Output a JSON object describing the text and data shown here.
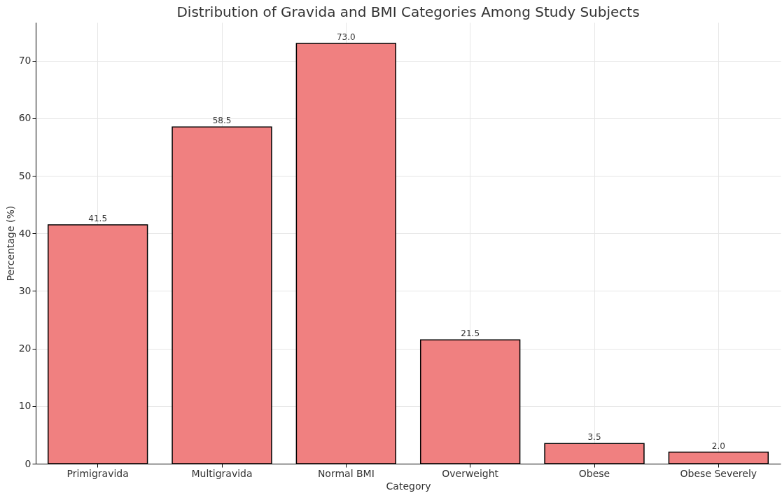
{
  "chart_data": {
    "type": "bar",
    "title": "Distribution of Gravida and BMI Categories Among Study Subjects",
    "xlabel": "Category",
    "ylabel": "Percentage (%)",
    "categories": [
      "Primigravida",
      "Multigravida",
      "Normal BMI",
      "Overweight",
      "Obese",
      "Obese Severely"
    ],
    "values": [
      41.5,
      58.5,
      73.0,
      21.5,
      3.5,
      2.0
    ],
    "value_labels": [
      "41.5",
      "58.5",
      "73.0",
      "21.5",
      "3.5",
      "2.0"
    ],
    "color": "#f08080",
    "ylim": [
      0,
      76.65
    ],
    "yticks": [
      0,
      10,
      20,
      30,
      40,
      50,
      60,
      70
    ],
    "grid": true
  }
}
